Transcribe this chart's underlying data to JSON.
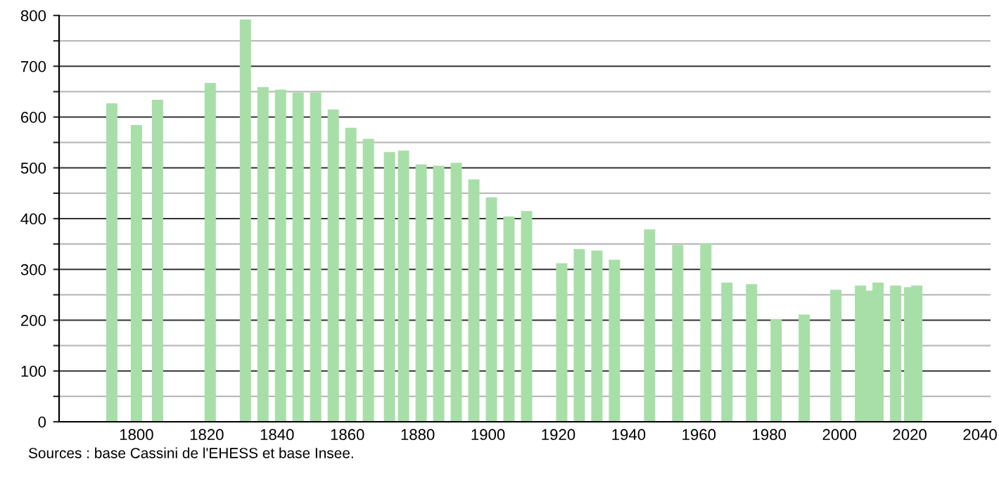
{
  "chart_data": {
    "type": "bar",
    "color": "#a8dfa8",
    "x": [
      1793,
      1800,
      1806,
      1821,
      1831,
      1836,
      1841,
      1846,
      1851,
      1856,
      1861,
      1866,
      1872,
      1876,
      1881,
      1886,
      1891,
      1896,
      1901,
      1906,
      1911,
      1921,
      1926,
      1931,
      1936,
      1946,
      1954,
      1962,
      1968,
      1975,
      1982,
      1990,
      1999,
      2006,
      2008,
      2011,
      2016,
      2020,
      2022
    ],
    "values": [
      627,
      584,
      634,
      667,
      792,
      659,
      654,
      648,
      648,
      615,
      579,
      557,
      531,
      534,
      507,
      504,
      510,
      477,
      442,
      404,
      415,
      312,
      340,
      337,
      319,
      379,
      348,
      352,
      274,
      271,
      202,
      211,
      260,
      268,
      258,
      274,
      268,
      265,
      268
    ],
    "xlim": [
      1778,
      2043
    ],
    "xticks": [
      1800,
      1820,
      1840,
      1860,
      1880,
      1900,
      1920,
      1940,
      1960,
      1980,
      2000,
      2020,
      2040
    ],
    "ylim": [
      0,
      800
    ],
    "yticks": [
      0,
      {
        "value": 50,
        "label": null
      },
      100,
      {
        "value": 150,
        "label": null
      },
      200,
      {
        "value": 250,
        "label": null
      },
      300,
      {
        "value": 350,
        "label": null
      },
      400,
      {
        "value": 450,
        "label": null
      },
      500,
      {
        "value": 550,
        "label": null
      },
      600,
      {
        "value": 650,
        "label": null
      },
      700,
      {
        "value": 750,
        "label": null
      },
      800
    ],
    "grid": "y",
    "annotations": [
      "Sources : base Cassini de l'EHESS et base Insee."
    ]
  }
}
